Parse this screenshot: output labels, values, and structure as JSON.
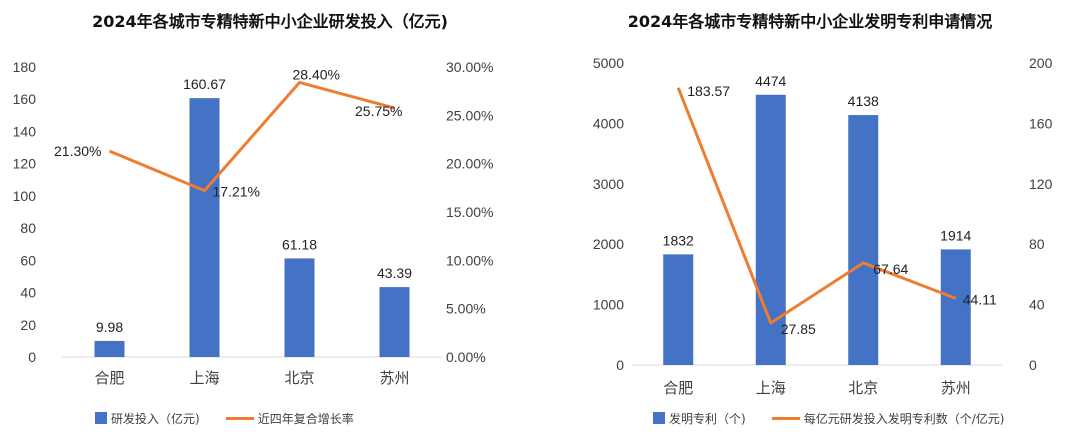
{
  "charts": [
    {
      "title": "2024年各城市专精特新中小企业研发投入（亿元)",
      "legend_bar": "研发投入（亿元)",
      "legend_line": "近四年复合增长率"
    },
    {
      "title": "2024年各城市专精特新中小企业发明专利申请情况",
      "legend_bar": "发明专利（个)",
      "legend_line": "每亿元研发投入发明专利数（个/亿元)"
    }
  ],
  "chart_data": [
    {
      "type": "bar",
      "title": "2024年各城市专精特新中小企业研发投入（亿元)",
      "categories": [
        "合肥",
        "上海",
        "北京",
        "苏州"
      ],
      "series": [
        {
          "name": "研发投入（亿元)",
          "type": "bar",
          "axis": "left",
          "values": [
            9.98,
            160.67,
            61.18,
            43.39
          ],
          "labels": [
            "9.98",
            "160.67",
            "61.18",
            "43.39"
          ],
          "color": "#4472C4"
        },
        {
          "name": "近四年复合增长率",
          "type": "line",
          "axis": "right",
          "values": [
            0.213,
            0.1721,
            0.284,
            0.2575
          ],
          "labels": [
            "21.30%",
            "17.21%",
            "28.40%",
            "25.75%"
          ],
          "color": "#ED7D31"
        }
      ],
      "left_axis": {
        "min": 0,
        "max": 180,
        "ticks": [
          "0",
          "20",
          "40",
          "60",
          "80",
          "100",
          "120",
          "140",
          "160",
          "180"
        ]
      },
      "right_axis": {
        "min": 0,
        "max": 0.3,
        "ticks": [
          "0.00%",
          "5.00%",
          "10.00%",
          "15.00%",
          "20.00%",
          "25.00%",
          "30.00%"
        ]
      },
      "grid": false,
      "legend_position": "bottom"
    },
    {
      "type": "bar",
      "title": "2024年各城市专精特新中小企业发明专利申请情况",
      "categories": [
        "合肥",
        "上海",
        "北京",
        "苏州"
      ],
      "series": [
        {
          "name": "发明专利（个)",
          "type": "bar",
          "axis": "left",
          "values": [
            1832,
            4474,
            4138,
            1914
          ],
          "labels": [
            "1832",
            "4474",
            "4138",
            "1914"
          ],
          "color": "#4472C4"
        },
        {
          "name": "每亿元研发投入发明专利数（个/亿元)",
          "type": "line",
          "axis": "right",
          "values": [
            183.57,
            27.85,
            67.64,
            44.11
          ],
          "labels": [
            "183.57",
            "27.85",
            "67.64",
            "44.11"
          ],
          "color": "#ED7D31"
        }
      ],
      "left_axis": {
        "min": 0,
        "max": 5000,
        "ticks": [
          "0",
          "1000",
          "2000",
          "3000",
          "4000",
          "5000"
        ]
      },
      "right_axis": {
        "min": 0,
        "max": 200,
        "ticks": [
          "0",
          "40",
          "80",
          "120",
          "160",
          "200"
        ]
      },
      "grid": false,
      "legend_position": "bottom"
    }
  ]
}
